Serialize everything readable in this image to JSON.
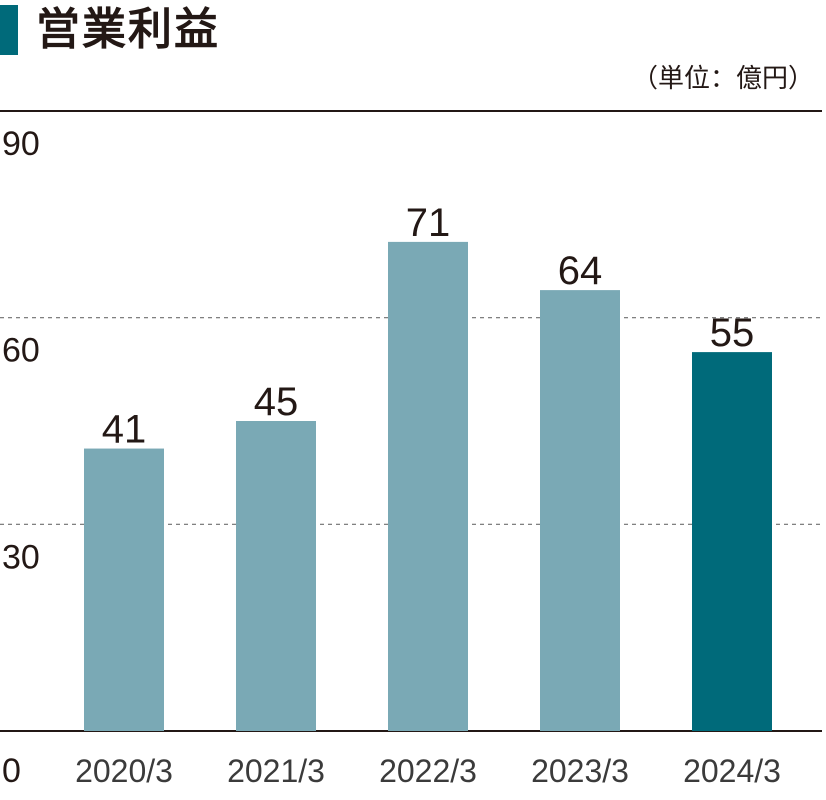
{
  "title": "営業利益",
  "unit_label": "（単位：億円）",
  "colors": {
    "accent": "#006a7a",
    "bar": "#7aa9b5",
    "bar_highlight": "#006a7a",
    "text": "#231815",
    "gridline": "#6e6e6e",
    "axis": "#231815"
  },
  "chart_data": {
    "type": "bar",
    "title": "営業利益",
    "unit": "（単位：億円）",
    "categories": [
      "2020/3",
      "2021/3",
      "2022/3",
      "2023/3",
      "2024/3"
    ],
    "values": [
      41,
      45,
      71,
      64,
      55
    ],
    "value_labels": [
      "41",
      "45",
      "71",
      "64",
      "55"
    ],
    "highlight_index": 4,
    "yticks": [
      0,
      30,
      60,
      90
    ],
    "ytick_labels": [
      "0",
      "30",
      "60",
      "90"
    ],
    "ylim": [
      0,
      90
    ],
    "grid": "dashed horizontal at 30 and 60",
    "xlabel": "",
    "ylabel": ""
  }
}
